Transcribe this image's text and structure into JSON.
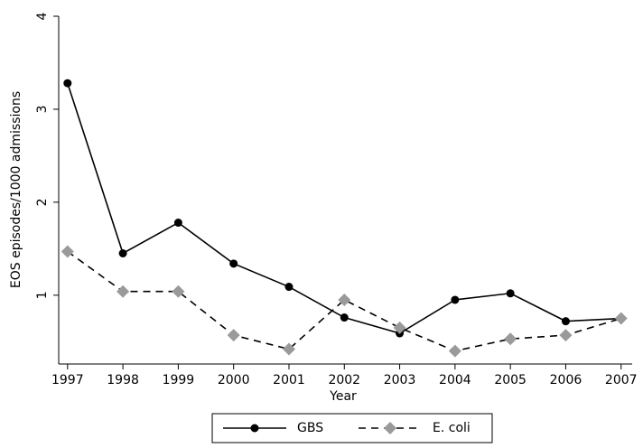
{
  "chart_data": {
    "type": "line",
    "x_label": "Year",
    "y_label": "EOS episodes/1000 admissions",
    "x": [
      1997,
      1998,
      1999,
      2000,
      2001,
      2002,
      2003,
      2004,
      2005,
      2006,
      2007
    ],
    "series": [
      {
        "name": "GBS",
        "color": "#000000",
        "marker": "circle",
        "dash": "solid",
        "values": [
          3.28,
          1.45,
          1.78,
          1.34,
          1.09,
          0.76,
          0.59,
          0.95,
          1.02,
          0.72,
          0.75
        ]
      },
      {
        "name": "E. coli",
        "color": "#9a9a9a",
        "line_color": "#000000",
        "marker": "diamond",
        "dash": "dashed",
        "values": [
          1.47,
          1.04,
          1.04,
          0.57,
          0.42,
          0.95,
          0.65,
          0.4,
          0.53,
          0.57,
          0.75
        ]
      }
    ],
    "xlim": [
      1996.84,
      2007.2
    ],
    "ylim": [
      0.26,
      4
    ],
    "xticks": [
      1997,
      1998,
      1999,
      2000,
      2001,
      2002,
      2003,
      2004,
      2005,
      2006,
      2007
    ],
    "yticks": [
      1,
      2,
      3,
      4
    ],
    "legend": "bottom",
    "grid": false
  }
}
